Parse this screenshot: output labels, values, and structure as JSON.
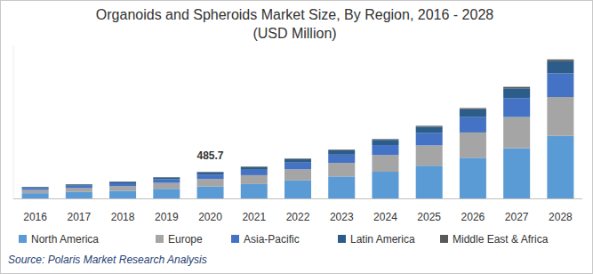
{
  "chart_data": {
    "type": "bar",
    "title": "Organoids and Spheroids Market Size, By Region, 2016 - 2028",
    "subtitle": "(USD Million)",
    "source": "Source: Polaris Market Research Analysis",
    "stacked": true,
    "tick_labels": "x",
    "categories": [
      "2016",
      "2017",
      "2018",
      "2019",
      "2020",
      "2021",
      "2022",
      "2023",
      "2024",
      "2025",
      "2026",
      "2027",
      "2028"
    ],
    "ylim": [
      0,
      2800
    ],
    "series": [
      {
        "name": "North America",
        "color": "#5b9bd5",
        "values": [
          95,
          117,
          139,
          175,
          219,
          262,
          328,
          401,
          488,
          598,
          743,
          918,
          1144
        ]
      },
      {
        "name": "Europe",
        "color": "#a5a5a5",
        "values": [
          59,
          72,
          86,
          109,
          135,
          163,
          204,
          249,
          304,
          372,
          463,
          571,
          712
        ]
      },
      {
        "name": "Asia-Pacific",
        "color": "#4472c4",
        "values": [
          36,
          44,
          52,
          66,
          82,
          99,
          124,
          151,
          184,
          226,
          281,
          347,
          432
        ]
      },
      {
        "name": "Latin America",
        "color": "#2c5d8a",
        "values": [
          18,
          23,
          27,
          34,
          43,
          51,
          63,
          78,
          95,
          115,
          144,
          178,
          222
        ]
      },
      {
        "name": "Middle East & Africa",
        "color": "#595959",
        "values": [
          3,
          3,
          4,
          5,
          6.7,
          8,
          10,
          12,
          14,
          17,
          21,
          27,
          33
        ]
      }
    ],
    "annotations": [
      {
        "label": "485.7",
        "category": "2020",
        "value": 485.7
      }
    ]
  }
}
